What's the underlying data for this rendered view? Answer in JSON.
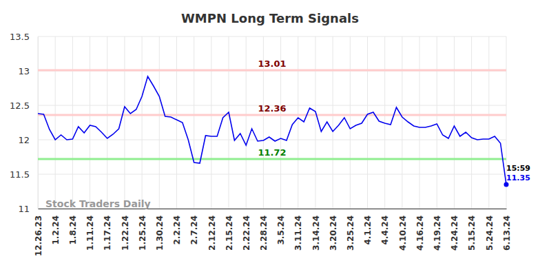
{
  "chart_data": {
    "type": "line",
    "title": "WMPN Long Term Signals",
    "watermark": "Stock Traders Daily",
    "color": "#0000ee",
    "grid": true,
    "categories": [
      "12.26.23",
      null,
      null,
      "1.2.24",
      null,
      null,
      "1.8.24",
      null,
      null,
      "1.11.24",
      null,
      null,
      "1.17.24",
      null,
      null,
      "1.22.24",
      null,
      null,
      "1.25.24",
      null,
      null,
      "1.30.24",
      null,
      null,
      "2.2.24",
      null,
      null,
      "2.7.24",
      null,
      null,
      "2.12.24",
      null,
      null,
      "2.15.24",
      null,
      null,
      "2.22.24",
      null,
      null,
      "2.28.24",
      null,
      null,
      "3.5.24",
      null,
      null,
      "3.11.24",
      null,
      null,
      "3.14.24",
      null,
      null,
      "3.20.24",
      null,
      null,
      "3.25.24",
      null,
      null,
      "4.1.24",
      null,
      null,
      "4.4.24",
      null,
      null,
      "4.10.24",
      null,
      null,
      "4.16.24",
      null,
      null,
      "4.19.24",
      null,
      null,
      "4.24.24",
      null,
      null,
      "5.15.24",
      null,
      null,
      "5.24.24",
      null,
      null,
      "6.13.24"
    ],
    "values": [
      12.38,
      12.37,
      12.15,
      12.0,
      12.07,
      12.0,
      12.01,
      12.19,
      12.1,
      12.21,
      12.19,
      12.11,
      12.02,
      12.08,
      12.16,
      12.48,
      12.38,
      12.44,
      12.63,
      12.92,
      12.78,
      12.63,
      12.34,
      12.33,
      12.29,
      12.25,
      12.0,
      11.67,
      11.66,
      12.06,
      12.05,
      12.05,
      12.32,
      12.4,
      11.99,
      12.09,
      11.92,
      12.16,
      11.98,
      11.99,
      12.04,
      11.98,
      12.02,
      11.99,
      12.22,
      12.32,
      12.26,
      12.46,
      12.41,
      12.12,
      12.26,
      12.12,
      12.21,
      12.32,
      12.16,
      12.21,
      12.24,
      12.37,
      12.4,
      12.27,
      12.24,
      12.22,
      12.47,
      12.33,
      12.26,
      12.2,
      12.18,
      12.18,
      12.2,
      12.23,
      12.07,
      12.02,
      12.2,
      12.05,
      12.11,
      12.03,
      12.0,
      12.01,
      12.01,
      12.05,
      11.95,
      11.35
    ],
    "ylim": [
      11,
      13.5
    ],
    "yticks": [
      11,
      11.5,
      12,
      12.5,
      13,
      13.5
    ],
    "reference_lines": [
      {
        "value": 13.01,
        "color": "#ffcccc"
      },
      {
        "value": 12.36,
        "color": "#ffcccc"
      },
      {
        "value": 11.72,
        "color": "#90ee90"
      }
    ],
    "last_label": "15:59"
  }
}
